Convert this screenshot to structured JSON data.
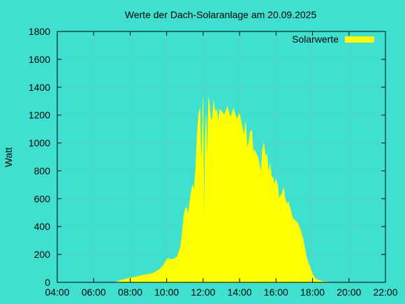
{
  "chart_data": {
    "type": "area",
    "title": "Werte der Dach-Solaranlage am 20.09.2025",
    "xlabel": "",
    "ylabel": "Watt",
    "x_ticks": [
      "04:00",
      "06:00",
      "08:00",
      "10:00",
      "12:00",
      "14:00",
      "16:00",
      "18:00",
      "20:00",
      "22:00"
    ],
    "y_ticks": [
      "0",
      "200",
      "400",
      "600",
      "800",
      "1000",
      "1200",
      "1400",
      "1600",
      "1800"
    ],
    "xlim": [
      "04:00",
      "22:00"
    ],
    "ylim": [
      0,
      1800
    ],
    "grid": true,
    "legend_position": "top-right",
    "series": [
      {
        "name": "Solarwerte",
        "color": "#FFFF00",
        "points": [
          [
            "07:10",
            0
          ],
          [
            "07:20",
            8
          ],
          [
            "07:30",
            15
          ],
          [
            "07:45",
            25
          ],
          [
            "08:00",
            32
          ],
          [
            "08:15",
            38
          ],
          [
            "08:30",
            45
          ],
          [
            "08:45",
            52
          ],
          [
            "09:00",
            58
          ],
          [
            "09:10",
            62
          ],
          [
            "09:20",
            70
          ],
          [
            "09:30",
            85
          ],
          [
            "09:40",
            100
          ],
          [
            "09:50",
            125
          ],
          [
            "10:00",
            165
          ],
          [
            "10:05",
            170
          ],
          [
            "10:15",
            165
          ],
          [
            "10:25",
            168
          ],
          [
            "10:35",
            185
          ],
          [
            "10:45",
            250
          ],
          [
            "10:50",
            330
          ],
          [
            "10:55",
            450
          ],
          [
            "11:00",
            520
          ],
          [
            "11:05",
            540
          ],
          [
            "11:10",
            480
          ],
          [
            "11:15",
            560
          ],
          [
            "11:20",
            640
          ],
          [
            "11:25",
            700
          ],
          [
            "11:30",
            660
          ],
          [
            "11:35",
            800
          ],
          [
            "11:40",
            1050
          ],
          [
            "11:45",
            1200
          ],
          [
            "11:50",
            1250
          ],
          [
            "11:53",
            860
          ],
          [
            "11:56",
            950
          ],
          [
            "12:00",
            1320
          ],
          [
            "12:03",
            290
          ],
          [
            "12:06",
            1000
          ],
          [
            "12:10",
            1200
          ],
          [
            "12:13",
            820
          ],
          [
            "12:18",
            1330
          ],
          [
            "12:25",
            1180
          ],
          [
            "12:30",
            1160
          ],
          [
            "12:35",
            1300
          ],
          [
            "12:40",
            1220
          ],
          [
            "12:45",
            1240
          ],
          [
            "12:50",
            1150
          ],
          [
            "12:55",
            1240
          ],
          [
            "13:00",
            1230
          ],
          [
            "13:10",
            1200
          ],
          [
            "13:20",
            1260
          ],
          [
            "13:30",
            1180
          ],
          [
            "13:40",
            1250
          ],
          [
            "13:50",
            1170
          ],
          [
            "14:00",
            1210
          ],
          [
            "14:10",
            1100
          ],
          [
            "14:15",
            1050
          ],
          [
            "14:20",
            1150
          ],
          [
            "14:25",
            960
          ],
          [
            "14:30",
            1000
          ],
          [
            "14:35",
            1080
          ],
          [
            "14:40",
            1090
          ],
          [
            "14:45",
            930
          ],
          [
            "14:50",
            950
          ],
          [
            "14:55",
            920
          ],
          [
            "15:00",
            900
          ],
          [
            "15:05",
            850
          ],
          [
            "15:10",
            780
          ],
          [
            "15:15",
            950
          ],
          [
            "15:20",
            1000
          ],
          [
            "15:25",
            900
          ],
          [
            "15:30",
            920
          ],
          [
            "15:35",
            780
          ],
          [
            "15:40",
            850
          ],
          [
            "15:45",
            760
          ],
          [
            "15:50",
            750
          ],
          [
            "15:55",
            700
          ],
          [
            "16:00",
            740
          ],
          [
            "16:05",
            700
          ],
          [
            "16:10",
            600
          ],
          [
            "16:15",
            620
          ],
          [
            "16:20",
            640
          ],
          [
            "16:25",
            680
          ],
          [
            "16:30",
            600
          ],
          [
            "16:35",
            560
          ],
          [
            "16:40",
            580
          ],
          [
            "16:45",
            540
          ],
          [
            "16:50",
            500
          ],
          [
            "16:55",
            460
          ],
          [
            "17:00",
            450
          ],
          [
            "17:10",
            430
          ],
          [
            "17:20",
            380
          ],
          [
            "17:30",
            300
          ],
          [
            "17:40",
            180
          ],
          [
            "17:50",
            120
          ],
          [
            "18:00",
            60
          ],
          [
            "18:10",
            25
          ],
          [
            "18:20",
            15
          ],
          [
            "18:30",
            10
          ],
          [
            "18:40",
            5
          ],
          [
            "18:50",
            2
          ],
          [
            "19:00",
            0
          ]
        ]
      }
    ]
  }
}
